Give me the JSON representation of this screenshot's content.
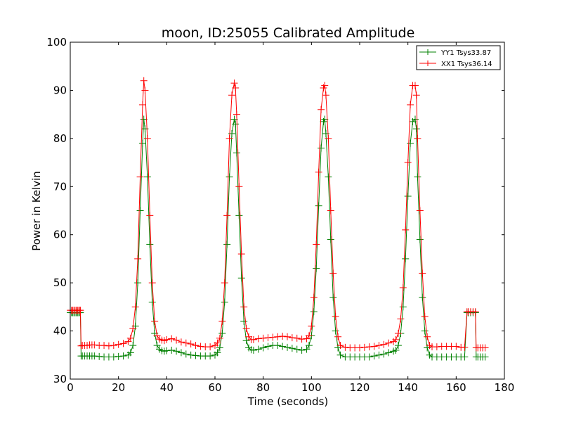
{
  "chart_data": {
    "type": "line",
    "title": "moon, ID:25055 Calibrated Amplitude",
    "xlabel": "Time (seconds)",
    "ylabel": "Power in Kelvin",
    "xlim": [
      0,
      180
    ],
    "ylim": [
      30,
      100
    ],
    "xticks": [
      0,
      20,
      40,
      60,
      80,
      100,
      120,
      140,
      160,
      180
    ],
    "yticks": [
      30,
      40,
      50,
      60,
      70,
      80,
      90,
      100
    ],
    "grid": false,
    "legend_position": "top-right",
    "series": [
      {
        "name": "YY1 Tsys33.87",
        "color": "#008000",
        "marker": "+",
        "x": [
          0,
          0.5,
          1,
          1.5,
          2,
          2.5,
          3,
          3.5,
          4,
          4.2,
          4.5,
          5,
          6,
          7,
          8,
          9,
          10,
          12,
          14,
          16,
          18,
          20,
          22,
          24,
          25,
          26,
          27,
          28,
          29,
          30,
          30.5,
          31,
          32,
          33,
          34,
          35,
          36,
          37,
          38,
          39,
          40,
          42,
          44,
          46,
          48,
          50,
          52,
          54,
          56,
          58,
          60,
          61,
          62,
          63,
          64,
          65,
          66,
          67,
          68,
          68.5,
          69,
          70,
          71,
          72,
          73,
          74,
          75,
          76,
          78,
          80,
          82,
          84,
          86,
          88,
          90,
          92,
          94,
          96,
          98,
          99,
          100,
          101,
          102,
          103,
          104,
          105,
          105.5,
          106,
          107,
          108,
          109,
          110,
          111,
          112,
          114,
          116,
          118,
          120,
          122,
          124,
          126,
          128,
          130,
          132,
          134,
          135,
          136,
          137,
          138,
          139,
          140,
          141,
          142,
          143,
          143.5,
          144,
          145,
          146,
          147,
          148,
          149,
          150,
          152,
          154,
          156,
          158,
          160,
          162,
          163.5,
          164.5,
          165,
          166,
          167,
          168,
          168.3,
          169,
          170,
          171,
          172
        ],
        "y": [
          43.8,
          43.8,
          43.8,
          43.8,
          43.8,
          43.8,
          43.8,
          43.8,
          43.8,
          43.8,
          34.8,
          34.8,
          34.8,
          34.8,
          34.8,
          34.8,
          34.8,
          34.7,
          34.6,
          34.6,
          34.6,
          34.7,
          34.8,
          35.0,
          35.5,
          37.0,
          41.0,
          50.0,
          65.0,
          79.0,
          84.0,
          82.0,
          72.0,
          58.0,
          46.0,
          39.5,
          37.0,
          36.2,
          35.9,
          35.8,
          35.9,
          36.0,
          35.8,
          35.5,
          35.2,
          35.0,
          34.9,
          34.8,
          34.8,
          34.8,
          35.0,
          35.5,
          36.5,
          39.5,
          46.0,
          58.0,
          72.0,
          81.0,
          84.0,
          83.0,
          77.0,
          64.0,
          51.0,
          42.0,
          38.0,
          36.5,
          36.1,
          36.0,
          36.2,
          36.5,
          36.8,
          37.0,
          37.0,
          36.8,
          36.6,
          36.4,
          36.2,
          36.0,
          36.2,
          37.0,
          39.0,
          44.0,
          53.0,
          66.0,
          78.0,
          83.5,
          84.0,
          81.0,
          72.0,
          59.0,
          47.0,
          40.0,
          36.5,
          35.0,
          34.6,
          34.6,
          34.6,
          34.6,
          34.6,
          34.6,
          34.8,
          35.0,
          35.2,
          35.5,
          35.8,
          36.0,
          37.0,
          39.5,
          45.0,
          55.0,
          68.0,
          79.0,
          83.5,
          84.0,
          82.0,
          72.0,
          59.0,
          47.0,
          40.0,
          36.5,
          35.0,
          34.6,
          34.6,
          34.6,
          34.6,
          34.6,
          34.6,
          34.6,
          34.6,
          43.8,
          43.8,
          43.8,
          43.8,
          43.8,
          34.6,
          34.6,
          34.6,
          34.6,
          34.6
        ]
      },
      {
        "name": "XX1 Tsys36.14",
        "color": "#ff0000",
        "marker": "+",
        "x": [
          0,
          0.5,
          1,
          1.5,
          2,
          2.5,
          3,
          3.5,
          4,
          4.2,
          4.5,
          5,
          6,
          7,
          8,
          9,
          10,
          12,
          14,
          16,
          18,
          20,
          22,
          24,
          25,
          26,
          27,
          28,
          29,
          30,
          30.5,
          31,
          32,
          33,
          34,
          35,
          36,
          37,
          38,
          39,
          40,
          42,
          44,
          46,
          48,
          50,
          52,
          54,
          56,
          58,
          60,
          61,
          62,
          63,
          64,
          65,
          66,
          67,
          68,
          68.5,
          69,
          70,
          71,
          72,
          73,
          74,
          75,
          76,
          78,
          80,
          82,
          84,
          86,
          88,
          90,
          92,
          94,
          96,
          98,
          99,
          100,
          101,
          102,
          103,
          104,
          105,
          105.5,
          106,
          107,
          108,
          109,
          110,
          111,
          112,
          114,
          116,
          118,
          120,
          122,
          124,
          126,
          128,
          130,
          132,
          134,
          135,
          136,
          137,
          138,
          139,
          140,
          141,
          142,
          143,
          143.5,
          144,
          145,
          146,
          147,
          148,
          149,
          150,
          152,
          154,
          156,
          158,
          160,
          162,
          163.5,
          164.5,
          165,
          166,
          167,
          168,
          168.3,
          169,
          170,
          171,
          172
        ],
        "y": [
          44.3,
          44.3,
          44.3,
          44.3,
          44.3,
          44.3,
          44.3,
          44.3,
          44.3,
          44.3,
          36.9,
          37.0,
          37.0,
          37.0,
          37.1,
          37.1,
          37.1,
          37.0,
          37.0,
          36.9,
          37.0,
          37.2,
          37.4,
          37.8,
          38.5,
          40.5,
          45.0,
          55.0,
          72.0,
          87.0,
          92.0,
          90.0,
          80.0,
          64.0,
          50.0,
          42.0,
          39.0,
          38.3,
          38.1,
          38.0,
          38.2,
          38.4,
          38.1,
          37.7,
          37.5,
          37.3,
          37.0,
          36.8,
          36.7,
          36.7,
          37.0,
          37.5,
          38.5,
          42.0,
          50.0,
          64.0,
          80.0,
          89.0,
          91.5,
          90.5,
          85.0,
          70.0,
          56.0,
          45.0,
          40.5,
          38.8,
          38.2,
          38.2,
          38.4,
          38.5,
          38.6,
          38.7,
          38.8,
          38.9,
          38.8,
          38.6,
          38.5,
          38.3,
          38.4,
          39.0,
          41.0,
          47.0,
          58.0,
          73.0,
          86.0,
          90.5,
          91.0,
          89.0,
          80.0,
          65.0,
          52.0,
          43.0,
          38.8,
          37.0,
          36.6,
          36.5,
          36.5,
          36.5,
          36.6,
          36.7,
          36.8,
          37.0,
          37.2,
          37.5,
          37.8,
          38.2,
          39.5,
          42.5,
          49.0,
          61.0,
          75.0,
          87.0,
          91.0,
          91.0,
          89.0,
          80.0,
          65.0,
          52.0,
          43.0,
          38.8,
          37.0,
          36.7,
          36.7,
          36.8,
          36.8,
          36.8,
          36.8,
          36.6,
          36.6,
          44.0,
          44.0,
          44.0,
          44.0,
          44.0,
          36.5,
          36.5,
          36.5,
          36.5,
          36.5
        ]
      }
    ]
  }
}
